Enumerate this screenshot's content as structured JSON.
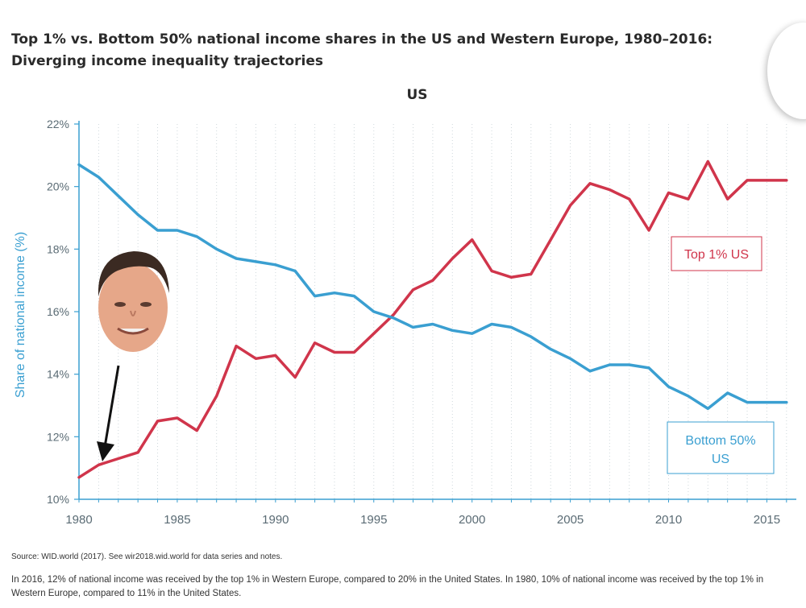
{
  "title": {
    "line1": "Top 1% vs. Bottom 50% national income shares in the US and Western Europe, 1980–2016:",
    "line2": "Diverging income inequality trajectories"
  },
  "chart_data": {
    "type": "line",
    "subtitle": "US",
    "ylabel": "Share of national income (%)",
    "xlabel": "",
    "xlim": [
      1980,
      2016.5
    ],
    "ylim": [
      10,
      22
    ],
    "x_ticks": [
      "1980",
      "1985",
      "1990",
      "1995",
      "2000",
      "2005",
      "2010",
      "2015"
    ],
    "y_ticks": [
      "10%",
      "12%",
      "14%",
      "16%",
      "18%",
      "20%",
      "22%"
    ],
    "grid": "dotted vertical",
    "x": [
      1980,
      1981,
      1982,
      1983,
      1984,
      1985,
      1986,
      1987,
      1988,
      1989,
      1990,
      1991,
      1992,
      1993,
      1994,
      1995,
      1996,
      1997,
      1998,
      1999,
      2000,
      2001,
      2002,
      2003,
      2004,
      2005,
      2006,
      2007,
      2008,
      2009,
      2010,
      2011,
      2012,
      2013,
      2014,
      2015,
      2016
    ],
    "series": [
      {
        "name": "Top 1% US",
        "color": "#d0354b",
        "values": [
          10.7,
          11.1,
          11.3,
          11.5,
          12.5,
          12.6,
          12.2,
          13.3,
          14.9,
          14.5,
          14.6,
          13.9,
          15.0,
          14.7,
          14.7,
          15.3,
          15.9,
          16.7,
          17.0,
          17.7,
          18.3,
          17.3,
          17.1,
          17.2,
          18.3,
          19.4,
          20.1,
          19.9,
          19.6,
          18.6,
          19.8,
          19.6,
          20.8,
          19.6,
          20.2,
          20.2,
          20.2
        ]
      },
      {
        "name": "Bottom 50% US",
        "color": "#3a9fd1",
        "values": [
          20.7,
          20.3,
          19.7,
          19.1,
          18.6,
          18.6,
          18.4,
          18.0,
          17.7,
          17.6,
          17.5,
          17.3,
          16.5,
          16.6,
          16.5,
          16.0,
          15.8,
          15.5,
          15.6,
          15.4,
          15.3,
          15.6,
          15.5,
          15.2,
          14.8,
          14.5,
          14.1,
          14.3,
          14.3,
          14.2,
          13.6,
          13.3,
          12.9,
          13.4,
          13.1,
          13.1,
          13.1
        ]
      }
    ],
    "labels": {
      "top": "Top 1% US",
      "bottom_line1": "Bottom 50%",
      "bottom_line2": "US"
    }
  },
  "footer": {
    "source": "Source: WID.world (2017). See wir2018.wid.world for data series and notes.",
    "note": "In 2016, 12% of national income was received by the top 1% in Western Europe, compared to 20% in the United States. In 1980, 10% of national income was received by the top 1% in Western Europe, compared to 11% in the United States."
  },
  "colors": {
    "top": "#d0354b",
    "bottom": "#3a9fd1",
    "axis": "#3a9fd1"
  }
}
